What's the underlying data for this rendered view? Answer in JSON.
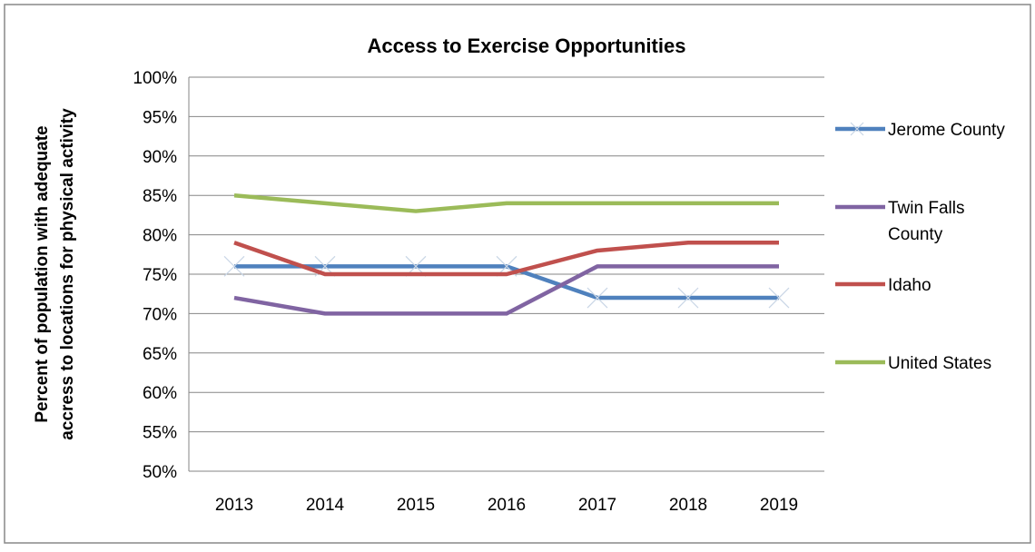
{
  "chart_data": {
    "type": "line",
    "title": "Access to Exercise Opportunities",
    "xlabel": "",
    "ylabel_lines": [
      "Percent of population with adequate",
      "accress to locations for physical activity"
    ],
    "x": [
      "2013",
      "2014",
      "2015",
      "2016",
      "2017",
      "2018",
      "2019"
    ],
    "ylim": [
      0.5,
      1.0
    ],
    "yticks": [
      "50%",
      "55%",
      "60%",
      "65%",
      "70%",
      "75%",
      "80%",
      "85%",
      "90%",
      "95%",
      "100%"
    ],
    "grid": true,
    "legend_position": "right",
    "series": [
      {
        "name": "Jerome County",
        "legend_lines": [
          "Jerome County"
        ],
        "color": "#4f81bd",
        "marker": "x",
        "values": [
          0.76,
          0.76,
          0.76,
          0.76,
          0.72,
          0.72,
          0.72
        ]
      },
      {
        "name": "Twin Falls County",
        "legend_lines": [
          "Twin Falls",
          "County"
        ],
        "color": "#8064a2",
        "marker": "none",
        "values": [
          0.72,
          0.7,
          0.7,
          0.7,
          0.76,
          0.76,
          0.76
        ]
      },
      {
        "name": "Idaho",
        "legend_lines": [
          "Idaho"
        ],
        "color": "#c0504d",
        "marker": "none",
        "values": [
          0.79,
          0.75,
          0.75,
          0.75,
          0.78,
          0.79,
          0.79
        ]
      },
      {
        "name": "United States",
        "legend_lines": [
          "United States"
        ],
        "color": "#9bbb59",
        "marker": "none",
        "values": [
          0.85,
          0.84,
          0.83,
          0.84,
          0.84,
          0.84,
          0.84
        ]
      }
    ]
  }
}
